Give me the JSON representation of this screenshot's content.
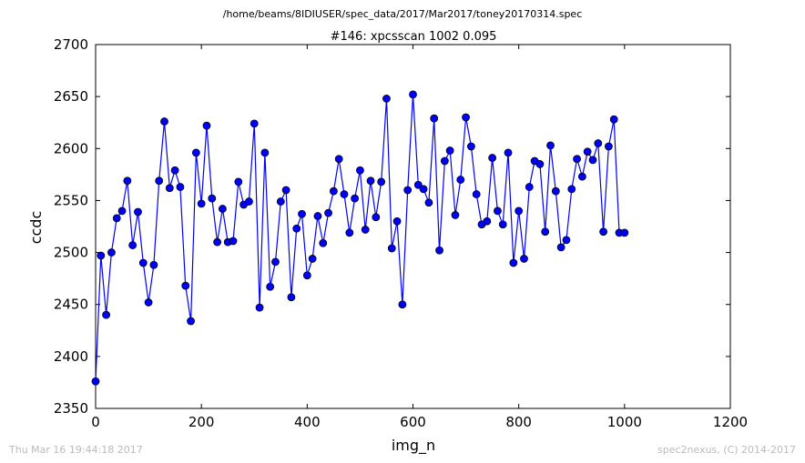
{
  "chart_data": {
    "type": "line",
    "suptitle": "/home/beams/8IDIUSER/spec_data/2017/Mar2017/toney20170314.spec",
    "title": "#146: xpcsscan 1002 0.095",
    "xlabel": "img_n",
    "ylabel": "ccdc",
    "xlim": [
      0,
      1200
    ],
    "ylim": [
      2350,
      2700
    ],
    "xticks": [
      0,
      200,
      400,
      600,
      800,
      1000,
      1200
    ],
    "yticks": [
      2350,
      2400,
      2450,
      2500,
      2550,
      2600,
      2650,
      2700
    ],
    "grid": false,
    "line_color": "#0000ff",
    "marker": "circle",
    "x": [
      0,
      10,
      20,
      30,
      40,
      50,
      60,
      70,
      80,
      90,
      100,
      110,
      120,
      130,
      140,
      150,
      160,
      170,
      180,
      190,
      200,
      210,
      220,
      230,
      240,
      250,
      260,
      270,
      280,
      290,
      300,
      310,
      320,
      330,
      340,
      350,
      360,
      370,
      380,
      390,
      400,
      410,
      420,
      430,
      440,
      450,
      460,
      470,
      480,
      490,
      500,
      510,
      520,
      530,
      540,
      550,
      560,
      570,
      580,
      590,
      600,
      610,
      620,
      630,
      640,
      650,
      660,
      670,
      680,
      690,
      700,
      710,
      720,
      730,
      740,
      750,
      760,
      770,
      780,
      790,
      800,
      810,
      820,
      830,
      840,
      850,
      860,
      870,
      880,
      890,
      900,
      910,
      920,
      930,
      940,
      950,
      960,
      970,
      980,
      990,
      1000
    ],
    "y": [
      2376,
      2497,
      2440,
      2500,
      2533,
      2540,
      2569,
      2507,
      2539,
      2490,
      2452,
      2488,
      2569,
      2626,
      2562,
      2579,
      2563,
      2468,
      2434,
      2596,
      2547,
      2622,
      2552,
      2510,
      2542,
      2510,
      2511,
      2568,
      2546,
      2549,
      2624,
      2447,
      2596,
      2467,
      2491,
      2549,
      2560,
      2457,
      2523,
      2537,
      2478,
      2494,
      2535,
      2509,
      2538,
      2559,
      2590,
      2556,
      2519,
      2552,
      2579,
      2522,
      2569,
      2534,
      2568,
      2648,
      2504,
      2530,
      2450,
      2560,
      2652,
      2565,
      2561,
      2548,
      2629,
      2502,
      2588,
      2598,
      2536,
      2570,
      2630,
      2602,
      2556,
      2527,
      2530,
      2591,
      2540,
      2527,
      2596,
      2490,
      2540,
      2494,
      2563,
      2588,
      2585,
      2520,
      2603,
      2559,
      2505,
      2512,
      2561,
      2590,
      2573,
      2597,
      2589,
      2605,
      2520,
      2602,
      2628,
      2519,
      2519
    ]
  },
  "footer": {
    "timestamp": "Thu Mar 16 19:44:18 2017",
    "credit": "spec2nexus, (C) 2014-2017"
  }
}
